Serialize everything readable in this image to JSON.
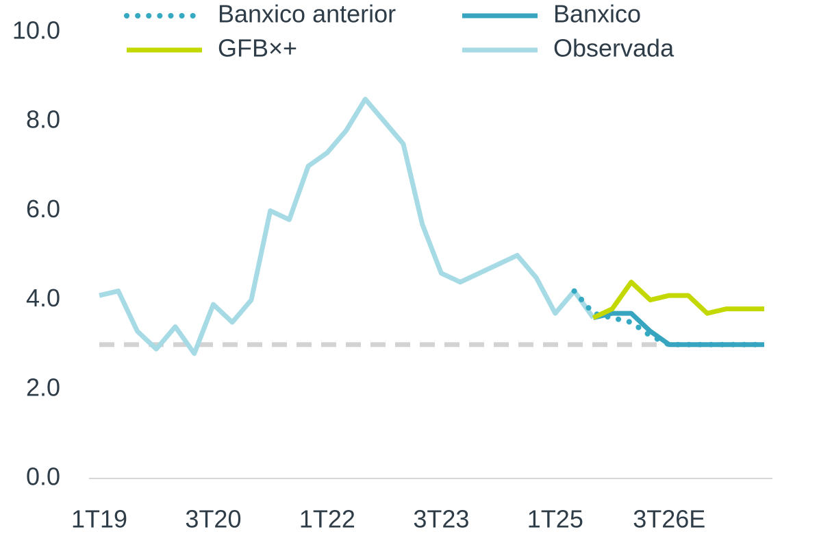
{
  "chart_data": {
    "type": "line",
    "categories": [
      "1T19",
      null,
      null,
      null,
      null,
      null,
      "3T20",
      null,
      null,
      null,
      null,
      null,
      "1T22",
      null,
      null,
      null,
      null,
      null,
      "3T23",
      null,
      null,
      null,
      null,
      null,
      "1T25",
      null,
      null,
      null,
      null,
      null,
      "3T26E",
      null,
      null,
      null,
      null,
      null
    ],
    "series": [
      {
        "name": "Banxico anterior",
        "color": "#35a9c2",
        "style": "dotted",
        "values": [
          null,
          null,
          null,
          null,
          null,
          null,
          null,
          null,
          null,
          null,
          null,
          null,
          null,
          null,
          null,
          null,
          null,
          null,
          null,
          null,
          null,
          null,
          null,
          null,
          null,
          4.2,
          3.7,
          3.6,
          3.5,
          3.2,
          3.0,
          3.0,
          3.0,
          3.0,
          3.0,
          3.0
        ]
      },
      {
        "name": "Banxico",
        "color": "#37a5bf",
        "style": "solid",
        "values": [
          null,
          null,
          null,
          null,
          null,
          null,
          null,
          null,
          null,
          null,
          null,
          null,
          null,
          null,
          null,
          null,
          null,
          null,
          null,
          null,
          null,
          null,
          null,
          null,
          null,
          null,
          3.6,
          3.7,
          3.7,
          3.3,
          3.0,
          3.0,
          3.0,
          3.0,
          3.0,
          3.0
        ]
      },
      {
        "name": "GFB×+",
        "color": "#c3d800",
        "style": "solid",
        "values": [
          null,
          null,
          null,
          null,
          null,
          null,
          null,
          null,
          null,
          null,
          null,
          null,
          null,
          null,
          null,
          null,
          null,
          null,
          null,
          null,
          null,
          null,
          null,
          null,
          null,
          null,
          3.6,
          3.8,
          4.4,
          4.0,
          4.1,
          4.1,
          3.7,
          3.8,
          3.8,
          3.8
        ]
      },
      {
        "name": "Observada",
        "color": "#a6dae5",
        "style": "solid",
        "values": [
          4.1,
          4.2,
          3.3,
          2.9,
          3.4,
          2.8,
          3.9,
          3.5,
          4.0,
          6.0,
          5.8,
          7.0,
          7.3,
          7.8,
          8.5,
          8.0,
          7.5,
          5.7,
          4.6,
          4.4,
          4.6,
          4.8,
          5.0,
          4.5,
          3.7,
          4.2,
          3.6,
          null,
          null,
          null,
          null,
          null,
          null,
          null,
          null,
          null
        ]
      }
    ],
    "reference_line": {
      "value": 3,
      "color": "#d3d3d3"
    },
    "ylim": [
      0,
      10
    ],
    "yticks": [
      {
        "value": 0,
        "label": "0.0"
      },
      {
        "value": 2,
        "label": "2.0"
      },
      {
        "value": 4,
        "label": "4.0"
      },
      {
        "value": 6,
        "label": "6.0"
      },
      {
        "value": 8,
        "label": "8.0"
      },
      {
        "value": 10,
        "label": "10.0"
      }
    ],
    "legend": "top"
  }
}
